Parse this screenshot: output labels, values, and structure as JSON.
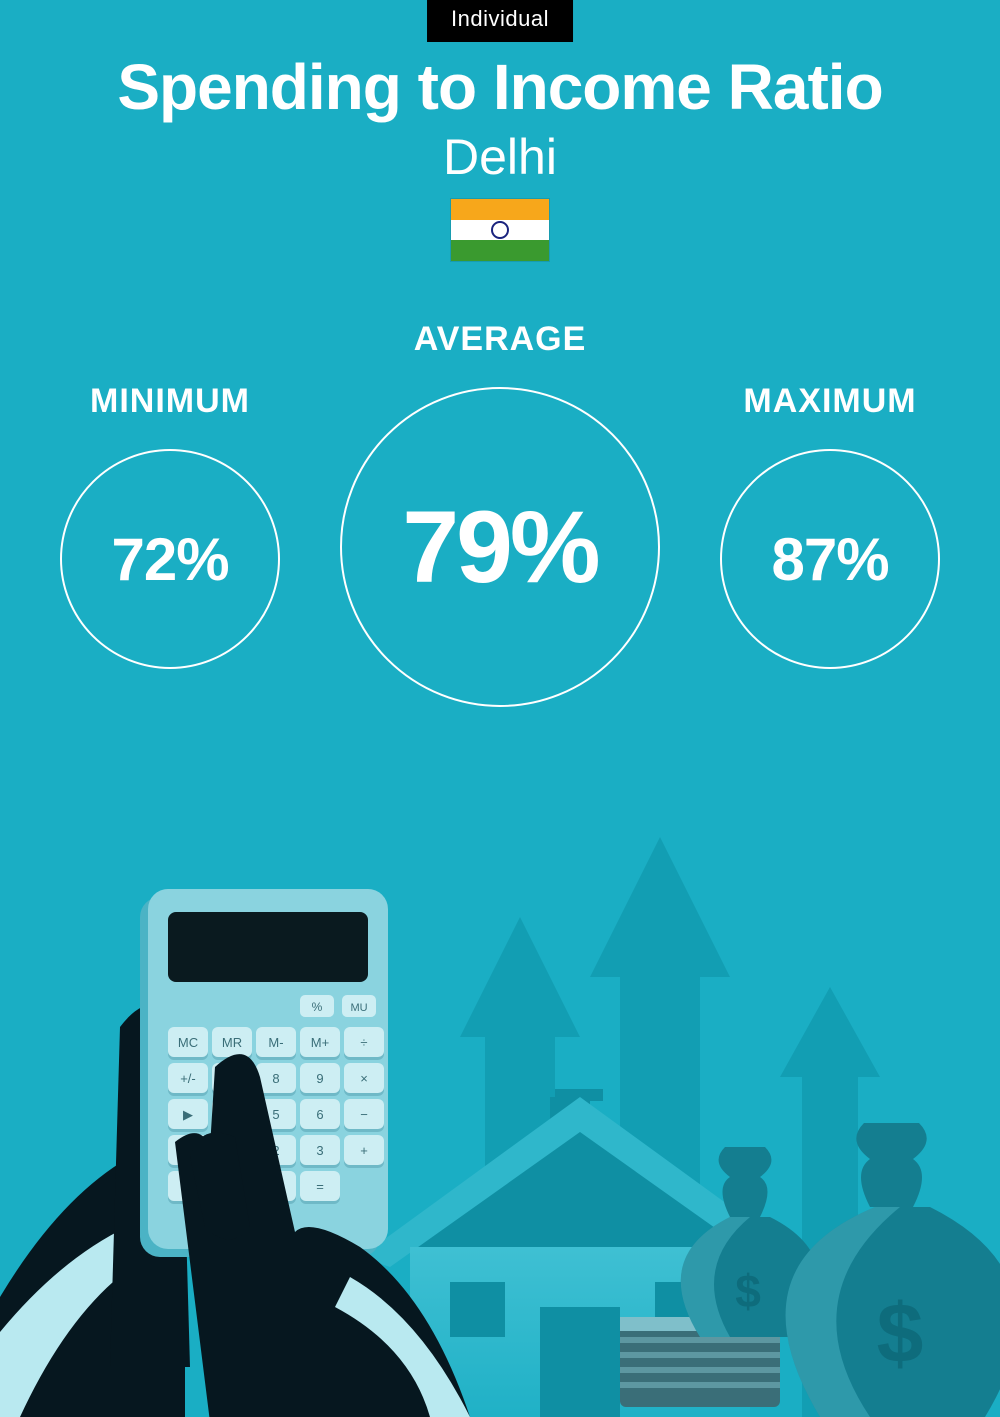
{
  "badge": {
    "label": "Individual",
    "bg": "#000000",
    "color": "#ffffff",
    "fontsize": 22
  },
  "title": {
    "text": "Spending to Income Ratio",
    "color": "#ffffff",
    "fontsize": 64,
    "fontweight": 800
  },
  "subtitle": {
    "text": "Delhi",
    "color": "#ffffff",
    "fontsize": 50,
    "fontweight": 400
  },
  "flag": {
    "width": 100,
    "height": 64,
    "stripes": [
      "#f7a71b",
      "#ffffff",
      "#3a9a2f"
    ],
    "chakra_color": "#1a237e"
  },
  "background_color": "#1aaec4",
  "stats": {
    "circle_border_color": "#ffffff",
    "circle_border_width": 2,
    "side_diameter": 220,
    "mid_diameter": 320,
    "label_fontsize": 34,
    "side_value_fontsize": 60,
    "mid_value_fontsize": 102,
    "min": {
      "label": "MINIMUM",
      "value": "72%"
    },
    "avg": {
      "label": "AVERAGE",
      "value": "79%"
    },
    "max": {
      "label": "MAXIMUM",
      "value": "87%"
    }
  },
  "illustration": {
    "arrow_fill": "#129eb3",
    "house_fill": "#2fb7cb",
    "house_shadow": "#0f8fa3",
    "bag_fill": "#147e90",
    "bag_highlight": "#5fcadc",
    "dollar_color": "#0e6c7c",
    "hand_fill": "#06171f",
    "cuff_fill": "#b9e9f0",
    "calc_body": "#8ad3df",
    "calc_body_dark": "#4bb3c5",
    "calc_screen": "#0a1a1f",
    "calc_btn": "#cdeef3",
    "calc_btn_shadow": "#6fb9c7",
    "stack_fill": "#3a6e78",
    "stack_light": "#7fbfca"
  }
}
